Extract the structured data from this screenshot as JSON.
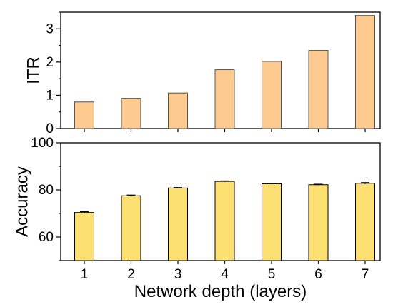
{
  "chart_data": [
    {
      "type": "bar",
      "ylabel": "ITR",
      "categories": [
        "1",
        "2",
        "3",
        "4",
        "5",
        "6",
        "7"
      ],
      "values": [
        0.8,
        0.91,
        1.07,
        1.77,
        2.02,
        2.35,
        3.4
      ],
      "ylim": [
        0,
        3.5
      ],
      "yticks": [
        "0",
        "1",
        "2",
        "3"
      ],
      "bar_color": "#fdca90",
      "grid": false
    },
    {
      "type": "bar",
      "ylabel": "Accuracy",
      "categories": [
        "1",
        "2",
        "3",
        "4",
        "5",
        "6",
        "7"
      ],
      "values": [
        70.4,
        77.5,
        80.8,
        83.6,
        82.6,
        82.2,
        82.8
      ],
      "errors": [
        0.4,
        0.3,
        0.2,
        0.2,
        0.2,
        0.2,
        0.3
      ],
      "ylim": [
        50,
        100
      ],
      "yticks": [
        "60",
        "80",
        "100"
      ],
      "bar_color": "#fce071",
      "grid": false
    }
  ],
  "xlabel": "Network depth (layers)",
  "xticks": [
    "1",
    "2",
    "3",
    "4",
    "5",
    "6",
    "7"
  ]
}
